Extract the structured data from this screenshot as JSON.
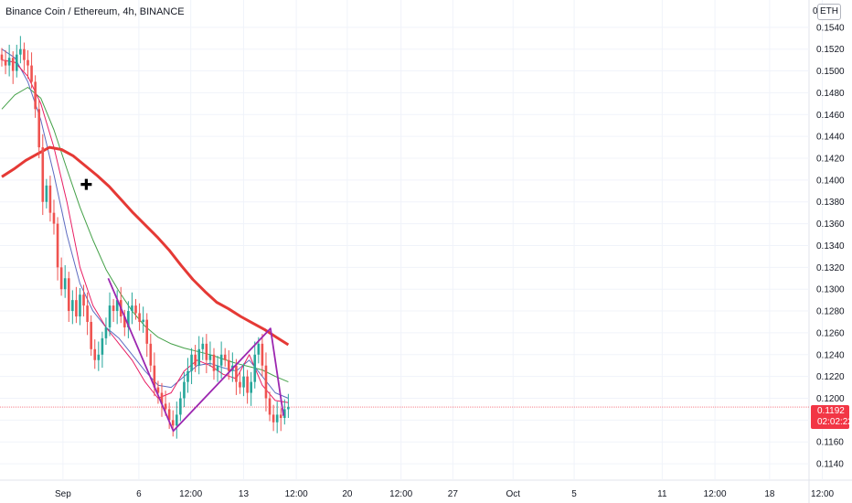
{
  "header": {
    "title": "Binance Coin / Ethereum, 4h, BINANCE",
    "currency_prefix": "0.",
    "currency_badge": "ETH"
  },
  "price_tag": {
    "price": "0.1192",
    "countdown": "02:02:22",
    "color": "#f23645"
  },
  "colors": {
    "up": "#26a69a",
    "down": "#ef5350",
    "ma_thick": "#e53935",
    "ma_green": "#43a047",
    "ma_blue": "#5c6bc0",
    "ma_pink": "#e91e63",
    "pattern": "#9c27b0",
    "grid": "#f0f3fa",
    "price_line": "#f23645"
  },
  "chart_data": {
    "type": "candlestick",
    "symbol": "Binance Coin / Ethereum",
    "interval": "4h",
    "exchange": "BINANCE",
    "ylim": [
      0.1125,
      0.1565
    ],
    "y_ticks": [
      "0.1140",
      "0.1160",
      "0.1180",
      "0.1200",
      "0.1220",
      "0.1240",
      "0.1260",
      "0.1280",
      "0.1300",
      "0.1320",
      "0.1340",
      "0.1360",
      "0.1380",
      "0.1400",
      "0.1420",
      "0.1440",
      "0.1460",
      "0.1480",
      "0.1500",
      "0.1520",
      "0.1540"
    ],
    "x_ticks": [
      {
        "label": "Sep",
        "pos": 0.0739
      },
      {
        "label": "6",
        "pos": 0.163
      },
      {
        "label": "12:00",
        "pos": 0.2239
      },
      {
        "label": "13",
        "pos": 0.2859
      },
      {
        "label": "12:00",
        "pos": 0.3478
      },
      {
        "label": "20",
        "pos": 0.4076
      },
      {
        "label": "12:00",
        "pos": 0.4707
      },
      {
        "label": "27",
        "pos": 0.5315
      },
      {
        "label": "Oct",
        "pos": 0.6022
      },
      {
        "label": "5",
        "pos": 0.6739
      },
      {
        "label": "11",
        "pos": 0.7772
      },
      {
        "label": "12:00",
        "pos": 0.8391
      },
      {
        "label": "18",
        "pos": 0.9033
      },
      {
        "label": "12:00",
        "pos": 0.9652
      }
    ],
    "last_price": 0.1192,
    "closes": [
      0.151,
      0.1505,
      0.1512,
      0.15,
      0.1515,
      0.152,
      0.151,
      0.1505,
      0.149,
      0.1465,
      0.143,
      0.138,
      0.1395,
      0.137,
      0.136,
      0.132,
      0.13,
      0.131,
      0.128,
      0.129,
      0.1275,
      0.1295,
      0.1285,
      0.127,
      0.1245,
      0.1235,
      0.124,
      0.1255,
      0.1265,
      0.1285,
      0.128,
      0.129,
      0.1275,
      0.1265,
      0.128,
      0.1285,
      0.1278,
      0.127,
      0.1272,
      0.125,
      0.123,
      0.121,
      0.1205,
      0.1195,
      0.119,
      0.118,
      0.1175,
      0.1185,
      0.12,
      0.1215,
      0.1225,
      0.124,
      0.123,
      0.1245,
      0.125,
      0.1235,
      0.124,
      0.1225,
      0.123,
      0.124,
      0.1235,
      0.1225,
      0.123,
      0.1215,
      0.121,
      0.122,
      0.1205,
      0.1215,
      0.124,
      0.125,
      0.123,
      0.12,
      0.1185,
      0.1178,
      0.1185,
      0.1182,
      0.119,
      0.1192
    ],
    "opens": [
      0.1515,
      0.151,
      0.1505,
      0.1512,
      0.15,
      0.1515,
      0.152,
      0.151,
      0.1505,
      0.149,
      0.1465,
      0.143,
      0.138,
      0.1395,
      0.137,
      0.136,
      0.132,
      0.13,
      0.131,
      0.128,
      0.129,
      0.1275,
      0.1295,
      0.1285,
      0.127,
      0.1245,
      0.1235,
      0.124,
      0.1255,
      0.1265,
      0.1285,
      0.128,
      0.129,
      0.1275,
      0.1265,
      0.128,
      0.1285,
      0.1278,
      0.127,
      0.1272,
      0.125,
      0.123,
      0.121,
      0.1205,
      0.1195,
      0.119,
      0.118,
      0.1175,
      0.1185,
      0.12,
      0.1215,
      0.1225,
      0.124,
      0.123,
      0.1245,
      0.125,
      0.1235,
      0.124,
      0.1225,
      0.123,
      0.124,
      0.1235,
      0.1225,
      0.123,
      0.1215,
      0.121,
      0.122,
      0.1205,
      0.1215,
      0.124,
      0.125,
      0.123,
      0.12,
      0.1185,
      0.1178,
      0.1185,
      0.1182,
      0.119
    ],
    "ma_thick": [
      0.1403,
      0.141,
      0.1418,
      0.1424,
      0.143,
      0.1428,
      0.1422,
      0.1413,
      0.1404,
      0.1394,
      0.1382,
      0.137,
      0.1359,
      0.1348,
      0.1336,
      0.1322,
      0.1309,
      0.1298,
      0.1288,
      0.1282,
      0.1275,
      0.1269,
      0.1263,
      0.1256,
      0.1249
    ],
    "ma_green": [
      0.1465,
      0.1478,
      0.1485,
      0.1475,
      0.1446,
      0.141,
      0.1375,
      0.1345,
      0.1318,
      0.1298,
      0.128,
      0.1266,
      0.1256,
      0.125,
      0.1246,
      0.1243,
      0.124,
      0.1236,
      0.1232,
      0.1229,
      0.1226,
      0.122,
      0.1215
    ],
    "ma_blue": [
      0.152,
      0.1512,
      0.149,
      0.1455,
      0.1405,
      0.135,
      0.1305,
      0.128,
      0.1265,
      0.1255,
      0.124,
      0.1225,
      0.1212,
      0.121,
      0.122,
      0.123,
      0.1232,
      0.1228,
      0.1225,
      0.1235,
      0.122,
      0.1205,
      0.12
    ],
    "ma_pink": [
      0.151,
      0.1508,
      0.1495,
      0.147,
      0.143,
      0.138,
      0.132,
      0.1285,
      0.1265,
      0.125,
      0.1235,
      0.1215,
      0.12,
      0.1205,
      0.1225,
      0.1235,
      0.123,
      0.1222,
      0.1218,
      0.124,
      0.1212,
      0.1198,
      0.1196
    ],
    "pattern": [
      {
        "bar": 28.6,
        "price": 0.131
      },
      {
        "bar": 46.1,
        "price": 0.117
      },
      {
        "bar": 72.2,
        "price": 0.1264
      },
      {
        "bar": 75.7,
        "price": 0.1184
      }
    ],
    "annotations": [
      {
        "type": "cross-marker",
        "bar": 22.7,
        "price": 0.1396
      }
    ],
    "grid": true
  }
}
